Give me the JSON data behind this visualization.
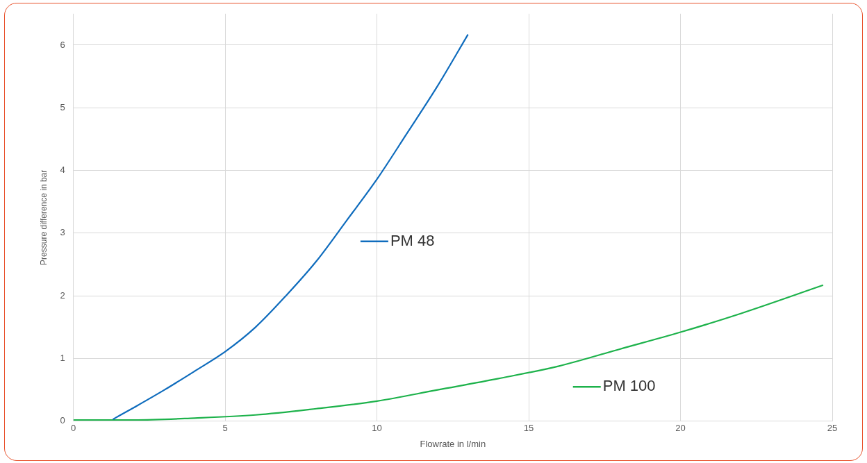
{
  "chart_data": {
    "type": "line",
    "xlabel": "Flowrate in l/min",
    "ylabel": "Pressure difference in bar",
    "xlim": [
      0,
      25
    ],
    "xticks": [
      0,
      5,
      10,
      15,
      20,
      25
    ],
    "ylim": [
      0,
      6.5
    ],
    "yticks": [
      0,
      1,
      2,
      3,
      4,
      5,
      6
    ],
    "grid": true,
    "legend": "right",
    "marker": "none",
    "line_style": "solid",
    "series": [
      {
        "name": "PM 48",
        "color": "#0f6cbd",
        "x": [
          1.3,
          2,
          3,
          4,
          5,
          6,
          7,
          8,
          9,
          10,
          11,
          12,
          13
        ],
        "values": [
          0.03,
          0.22,
          0.5,
          0.8,
          1.11,
          1.5,
          2.0,
          2.55,
          3.2,
          3.86,
          4.6,
          5.35,
          6.17
        ]
      },
      {
        "name": "PM 100",
        "color": "#1db24b",
        "x": [
          0,
          2,
          4,
          6,
          8,
          10,
          12,
          14,
          16,
          18,
          20,
          22,
          24.7
        ],
        "values": [
          0.02,
          0.02,
          0.05,
          0.1,
          0.2,
          0.32,
          0.5,
          0.68,
          0.88,
          1.15,
          1.42,
          1.72,
          2.17
        ]
      }
    ]
  }
}
